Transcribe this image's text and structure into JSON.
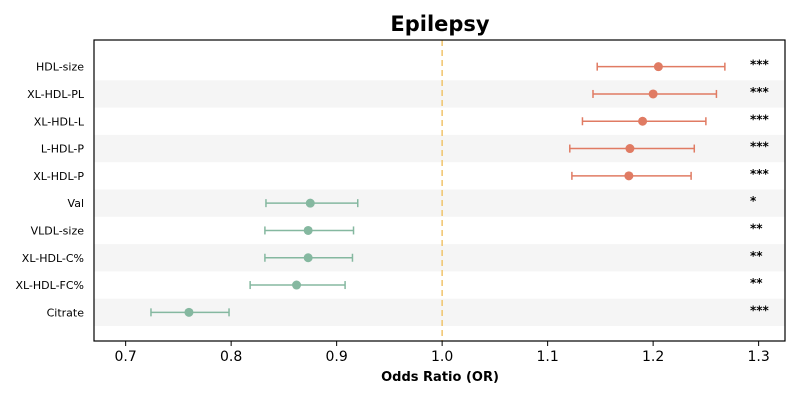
{
  "chart_data": {
    "type": "forest",
    "title": "Epilepsy",
    "xlabel": "Odds Ratio (OR)",
    "xlim": [
      0.67,
      1.325
    ],
    "xticks": [
      "0.7",
      "0.8",
      "0.9",
      "1.0",
      "1.1",
      "1.2",
      "1.3"
    ],
    "xtick_values": [
      0.7,
      0.8,
      0.9,
      1.0,
      1.1,
      1.2,
      1.3
    ],
    "reference_line": 1.0,
    "categories": [
      "HDL-size",
      "XL-HDL-PL",
      "XL-HDL-L",
      "L-HDL-P",
      "XL-HDL-P",
      "Val",
      "VLDL-size",
      "XL-HDL-C%",
      "XL-HDL-FC%",
      "Citrate"
    ],
    "or": [
      1.205,
      1.2,
      1.19,
      1.178,
      1.177,
      0.875,
      0.873,
      0.873,
      0.862,
      0.76
    ],
    "ci_low": [
      1.147,
      1.143,
      1.133,
      1.121,
      1.123,
      0.833,
      0.832,
      0.832,
      0.818,
      0.724
    ],
    "ci_high": [
      1.268,
      1.26,
      1.25,
      1.239,
      1.236,
      0.92,
      0.916,
      0.915,
      0.908,
      0.798
    ],
    "significance": [
      "***",
      "***",
      "***",
      "***",
      "***",
      "*",
      "**",
      "**",
      "**",
      "***"
    ],
    "colors": {
      "positive": "#e07b63",
      "negative": "#85b8a0",
      "reference": "#f0c46c",
      "stripe": "#f5f5f5"
    }
  }
}
